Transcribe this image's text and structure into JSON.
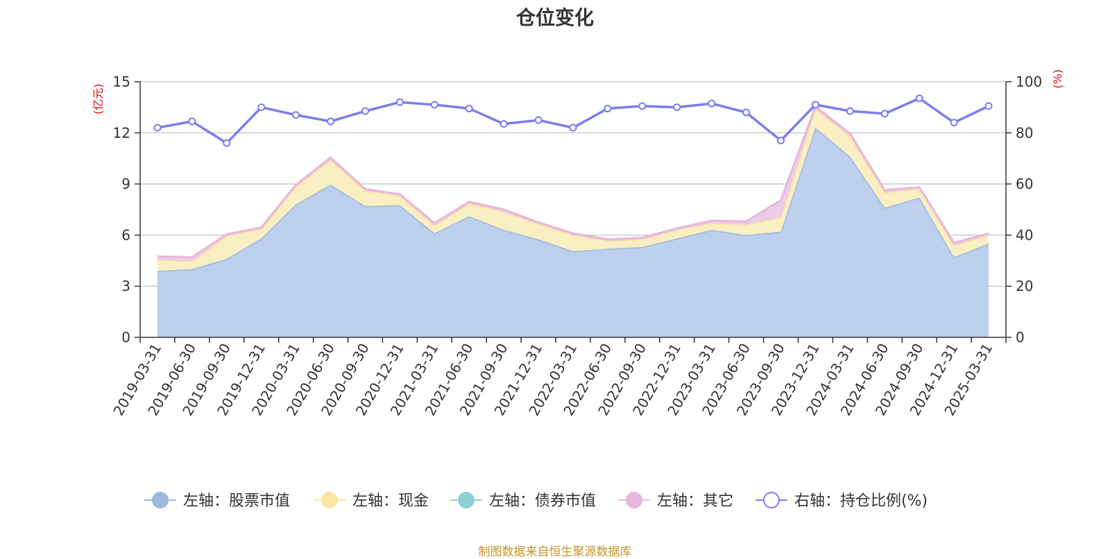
{
  "title": "仓位变化",
  "source": "制图数据来自恒生聚源数据库",
  "colors": {
    "stock": "#9cb8e0",
    "stock_fill": "#b8cceb",
    "cash": "#f8e6a0",
    "cash_fill": "#faeebf",
    "bond": "#8ecfd4",
    "other": "#e8b6dc",
    "other_fill": "#ecc9e4",
    "ratio": "#7b7bf0",
    "axis": "#333333",
    "grid": "#cccccc",
    "unit": "#e60000"
  },
  "chart_data": {
    "type": "area",
    "title": "仓位变化",
    "left_axis": {
      "unit": "(亿元)",
      "ylim": [
        0,
        15
      ],
      "ticks": [
        "0",
        "3",
        "6",
        "9",
        "12",
        "15"
      ]
    },
    "right_axis": {
      "unit": "(%)",
      "ylim": [
        0,
        100
      ],
      "ticks": [
        "0",
        "20",
        "40",
        "60",
        "80",
        "100"
      ]
    },
    "grid": true,
    "legend_position": "bottom",
    "categories": [
      "2019-03-31",
      "2019-06-30",
      "2019-09-30",
      "2019-12-31",
      "2020-03-31",
      "2020-06-30",
      "2020-09-30",
      "2020-12-31",
      "2021-03-31",
      "2021-06-30",
      "2021-09-30",
      "2021-12-31",
      "2022-03-31",
      "2022-06-30",
      "2022-09-30",
      "2022-12-31",
      "2023-03-31",
      "2023-06-30",
      "2023-09-30",
      "2023-12-31",
      "2024-03-31",
      "2024-06-30",
      "2024-09-30",
      "2024-12-31",
      "2025-03-31"
    ],
    "series": [
      {
        "name": "左轴：股票市值",
        "axis": "left",
        "stacked": true,
        "values": [
          3.9,
          4.0,
          4.6,
          5.8,
          7.8,
          8.95,
          7.7,
          7.75,
          6.1,
          7.1,
          6.3,
          5.75,
          5.05,
          5.2,
          5.3,
          5.8,
          6.3,
          6.0,
          6.2,
          12.3,
          10.6,
          7.6,
          8.2,
          4.7,
          5.5
        ]
      },
      {
        "name": "左轴：现金",
        "axis": "left",
        "stacked": true,
        "values": [
          0.65,
          0.45,
          1.35,
          0.55,
          1.05,
          1.45,
          0.9,
          0.55,
          0.45,
          0.75,
          1.05,
          0.9,
          0.95,
          0.45,
          0.45,
          0.5,
          0.4,
          0.6,
          0.85,
          1.1,
          1.2,
          0.9,
          0.55,
          0.7,
          0.5
        ]
      },
      {
        "name": "左轴：债券市值",
        "axis": "left",
        "stacked": true,
        "values": [
          0,
          0,
          0,
          0,
          0,
          0,
          0,
          0,
          0,
          0,
          0,
          0,
          0,
          0,
          0,
          0,
          0,
          0,
          0,
          0,
          0,
          0,
          0,
          0,
          0
        ]
      },
      {
        "name": "左轴：其它",
        "axis": "left",
        "stacked": true,
        "values": [
          0.2,
          0.25,
          0.1,
          0.1,
          0.1,
          0.15,
          0.1,
          0.1,
          0.15,
          0.1,
          0.15,
          0.1,
          0.1,
          0.1,
          0.1,
          0.1,
          0.15,
          0.2,
          1.0,
          0.15,
          0.15,
          0.15,
          0.05,
          0.15,
          0.1
        ]
      },
      {
        "name": "右轴：持仓比例(%)",
        "axis": "right",
        "type": "line",
        "values": [
          82,
          84.5,
          76,
          90,
          87,
          84.5,
          88.5,
          92,
          91,
          89.5,
          83.5,
          85,
          82,
          89.5,
          90.5,
          90,
          91.5,
          88,
          77,
          91,
          88.5,
          87.5,
          93.5,
          84,
          90.5
        ]
      }
    ]
  }
}
